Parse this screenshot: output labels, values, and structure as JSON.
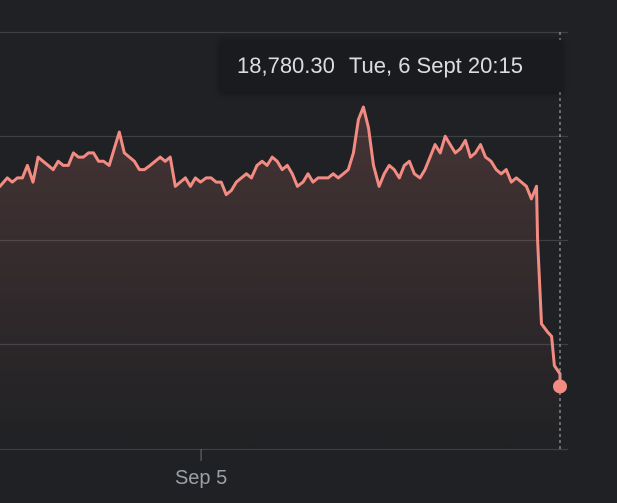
{
  "tooltip": {
    "value": "18,780.30",
    "datetime": "Tue, 6 Sept 20:15"
  },
  "colors": {
    "background": "#202124",
    "line": "#f28b82",
    "grid": "#3c4043",
    "axis_text": "#9aa0a6",
    "tooltip_bg": "#1a1b1e",
    "tooltip_text": "#dadce0"
  },
  "chart_data": {
    "type": "area",
    "title": "",
    "xlabel": "",
    "ylabel": "",
    "x_tick_labels": [
      {
        "label": "Sep 5",
        "at": 0.36
      }
    ],
    "x_range": [
      0,
      1
    ],
    "y_range": [
      0,
      1
    ],
    "grid": true,
    "series": [
      {
        "values": [
          [
            0.0,
            0.63
          ],
          [
            0.013,
            0.65
          ],
          [
            0.022,
            0.64
          ],
          [
            0.031,
            0.65
          ],
          [
            0.04,
            0.65
          ],
          [
            0.049,
            0.68
          ],
          [
            0.059,
            0.64
          ],
          [
            0.068,
            0.7
          ],
          [
            0.077,
            0.69
          ],
          [
            0.086,
            0.68
          ],
          [
            0.095,
            0.67
          ],
          [
            0.104,
            0.69
          ],
          [
            0.113,
            0.68
          ],
          [
            0.122,
            0.68
          ],
          [
            0.131,
            0.71
          ],
          [
            0.14,
            0.7
          ],
          [
            0.149,
            0.7
          ],
          [
            0.158,
            0.71
          ],
          [
            0.167,
            0.71
          ],
          [
            0.176,
            0.69
          ],
          [
            0.185,
            0.69
          ],
          [
            0.195,
            0.68
          ],
          [
            0.204,
            0.72
          ],
          [
            0.213,
            0.76
          ],
          [
            0.222,
            0.71
          ],
          [
            0.231,
            0.7
          ],
          [
            0.24,
            0.69
          ],
          [
            0.249,
            0.67
          ],
          [
            0.258,
            0.67
          ],
          [
            0.268,
            0.68
          ],
          [
            0.277,
            0.69
          ],
          [
            0.286,
            0.7
          ],
          [
            0.295,
            0.69
          ],
          [
            0.304,
            0.7
          ],
          [
            0.313,
            0.63
          ],
          [
            0.322,
            0.64
          ],
          [
            0.331,
            0.65
          ],
          [
            0.34,
            0.63
          ],
          [
            0.349,
            0.65
          ],
          [
            0.358,
            0.64
          ],
          [
            0.368,
            0.65
          ],
          [
            0.377,
            0.65
          ],
          [
            0.386,
            0.64
          ],
          [
            0.395,
            0.64
          ],
          [
            0.404,
            0.61
          ],
          [
            0.413,
            0.62
          ],
          [
            0.422,
            0.64
          ],
          [
            0.431,
            0.65
          ],
          [
            0.44,
            0.66
          ],
          [
            0.449,
            0.65
          ],
          [
            0.459,
            0.68
          ],
          [
            0.468,
            0.69
          ],
          [
            0.477,
            0.68
          ],
          [
            0.486,
            0.7
          ],
          [
            0.495,
            0.69
          ],
          [
            0.504,
            0.67
          ],
          [
            0.513,
            0.68
          ],
          [
            0.522,
            0.66
          ],
          [
            0.531,
            0.63
          ],
          [
            0.541,
            0.64
          ],
          [
            0.55,
            0.66
          ],
          [
            0.559,
            0.64
          ],
          [
            0.568,
            0.65
          ],
          [
            0.577,
            0.65
          ],
          [
            0.586,
            0.65
          ],
          [
            0.595,
            0.66
          ],
          [
            0.604,
            0.65
          ],
          [
            0.613,
            0.66
          ],
          [
            0.622,
            0.67
          ],
          [
            0.631,
            0.71
          ],
          [
            0.64,
            0.79
          ],
          [
            0.649,
            0.82
          ],
          [
            0.658,
            0.77
          ],
          [
            0.667,
            0.68
          ],
          [
            0.677,
            0.63
          ],
          [
            0.686,
            0.66
          ],
          [
            0.695,
            0.68
          ],
          [
            0.704,
            0.67
          ],
          [
            0.713,
            0.65
          ],
          [
            0.722,
            0.68
          ],
          [
            0.731,
            0.69
          ],
          [
            0.74,
            0.66
          ],
          [
            0.75,
            0.65
          ],
          [
            0.759,
            0.67
          ],
          [
            0.768,
            0.7
          ],
          [
            0.777,
            0.73
          ],
          [
            0.786,
            0.71
          ],
          [
            0.795,
            0.75
          ],
          [
            0.804,
            0.73
          ],
          [
            0.813,
            0.71
          ],
          [
            0.822,
            0.72
          ],
          [
            0.831,
            0.74
          ],
          [
            0.84,
            0.7
          ],
          [
            0.849,
            0.71
          ],
          [
            0.858,
            0.73
          ],
          [
            0.867,
            0.7
          ],
          [
            0.877,
            0.69
          ],
          [
            0.886,
            0.67
          ],
          [
            0.895,
            0.66
          ],
          [
            0.904,
            0.67
          ],
          [
            0.913,
            0.64
          ],
          [
            0.922,
            0.65
          ],
          [
            0.931,
            0.64
          ],
          [
            0.94,
            0.63
          ],
          [
            0.949,
            0.6
          ],
          [
            0.958,
            0.63
          ],
          [
            0.96,
            0.5
          ],
          [
            0.967,
            0.3
          ],
          [
            0.978,
            0.28
          ],
          [
            0.985,
            0.27
          ],
          [
            0.99,
            0.2
          ],
          [
            1.0,
            0.18
          ],
          [
            1.0,
            0.15
          ]
        ]
      }
    ]
  }
}
